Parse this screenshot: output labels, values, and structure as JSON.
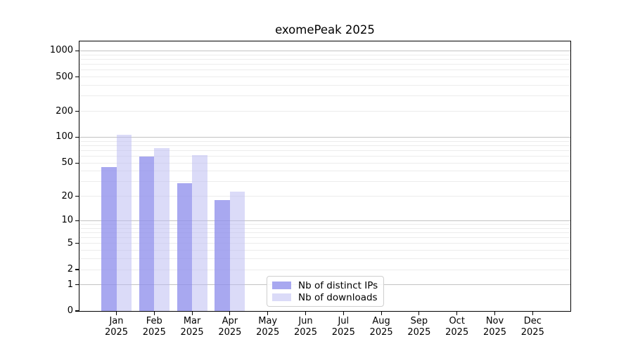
{
  "chart_data": {
    "type": "bar",
    "title": "exomePeak 2025",
    "year": "2025",
    "categories": [
      "Jan",
      "Feb",
      "Mar",
      "Apr",
      "May",
      "Jun",
      "Jul",
      "Aug",
      "Sep",
      "Oct",
      "Nov",
      "Dec"
    ],
    "series": [
      {
        "key": "distinct-ips",
        "name": "Nb of distinct IPs",
        "color": "#A8A8F0",
        "fill": "rgba(143,143,236,0.78)",
        "values": [
          45,
          60,
          29,
          18,
          0,
          0,
          0,
          0,
          0,
          0,
          0,
          0
        ]
      },
      {
        "key": "downloads",
        "name": "Nb of downloads",
        "color": "#DBDBF8",
        "fill": "rgba(186,186,241,0.52)",
        "values": [
          106,
          74,
          62,
          23,
          0,
          0,
          0,
          0,
          0,
          0,
          0,
          0
        ]
      }
    ],
    "y_scale": "log10(1+x)",
    "y_ticks": [
      0,
      1,
      2,
      5,
      10,
      20,
      50,
      100,
      200,
      500,
      1000
    ],
    "y_major_gridlines": [
      1,
      10,
      100,
      1000
    ],
    "ylim": [
      0,
      1280
    ],
    "xlabel": "",
    "ylabel": "",
    "grid": "both",
    "legend_position": "lower-center"
  }
}
